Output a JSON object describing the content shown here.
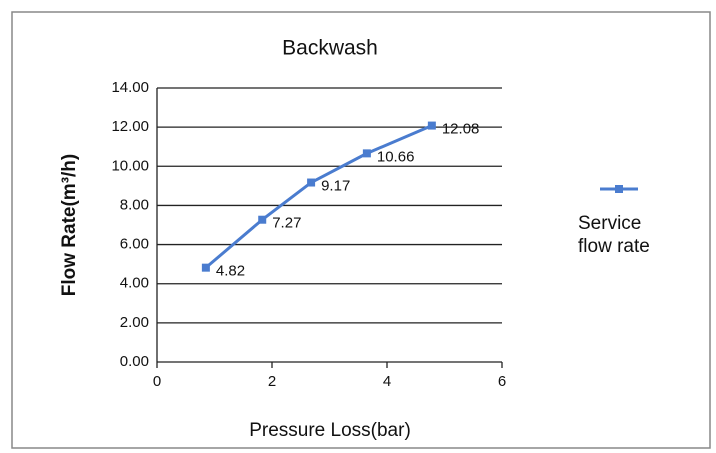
{
  "chart_data": {
    "type": "line",
    "title": "Backwash",
    "xlabel": "Pressure Loss(bar)",
    "ylabel": "Flow Rate(m³/h)",
    "x": [
      0.85,
      1.83,
      2.68,
      3.65,
      4.78
    ],
    "series": [
      {
        "name": "Service flow rate",
        "color": "#4a7ccf",
        "values": [
          4.82,
          7.27,
          9.17,
          10.66,
          12.08
        ]
      }
    ],
    "xlim": [
      0,
      6
    ],
    "xticks": [
      0,
      2,
      4,
      6
    ],
    "ylim": [
      0,
      14
    ],
    "yticks": [
      {
        "value": 0,
        "label": "0.00"
      },
      {
        "value": 2,
        "label": "2.00"
      },
      {
        "value": 4,
        "label": "4.00"
      },
      {
        "value": 6,
        "label": "6.00"
      },
      {
        "value": 8,
        "label": "8.00"
      },
      {
        "value": 10,
        "label": "10.00"
      },
      {
        "value": 12,
        "label": "12.00"
      },
      {
        "value": 14,
        "label": "14.00"
      }
    ],
    "grid": true,
    "legend": "right"
  }
}
